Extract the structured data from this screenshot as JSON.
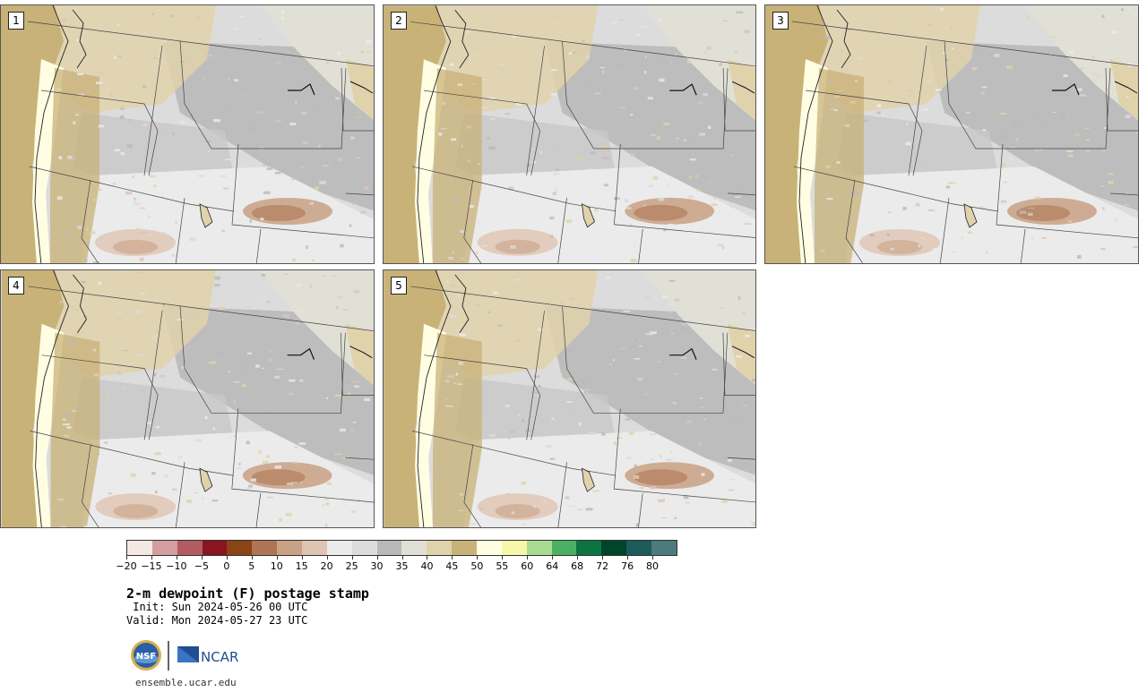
{
  "panels": [
    {
      "label": "1"
    },
    {
      "label": "2"
    },
    {
      "label": "3"
    },
    {
      "label": "4"
    },
    {
      "label": "5"
    }
  ],
  "colorbar": {
    "colors": [
      "#f3e8e4",
      "#d49da0",
      "#b25c62",
      "#8a1420",
      "#8a4415",
      "#ad7553",
      "#c9a184",
      "#dfc4b3",
      "#ebebeb",
      "#dcdcdc",
      "#b9b9b9",
      "#e1e0d6",
      "#e0d2ab",
      "#c9b278",
      "#fffee3",
      "#f8f7a9",
      "#a8db8f",
      "#4cb064",
      "#0b7441",
      "#00442a",
      "#1c5a5c",
      "#4d7a7d"
    ],
    "tick_labels": [
      "−20",
      "−15",
      "−10",
      "−5",
      "0",
      "5",
      "10",
      "15",
      "20",
      "25",
      "30",
      "35",
      "40",
      "45",
      "50",
      "55",
      "60",
      "64",
      "68",
      "72",
      "76",
      "80"
    ]
  },
  "title": "2-m dewpoint (F) postage stamp",
  "init_line": " Init: Sun 2024-05-26 00 UTC",
  "valid_line": "Valid: Mon 2024-05-27 23 UTC",
  "logos": {
    "nsf": "NSF",
    "ncar": "NCAR"
  },
  "site": "ensemble.ucar.edu"
}
